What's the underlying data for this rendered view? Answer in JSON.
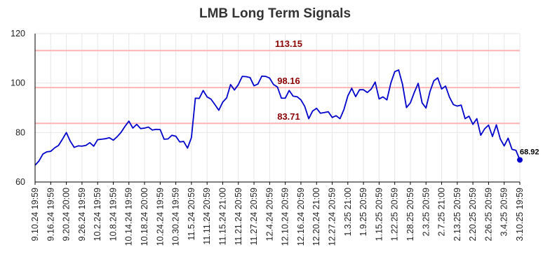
{
  "chart_data": {
    "type": "line",
    "title": "LMB Long Term Signals",
    "xlabel": "",
    "ylabel": "",
    "ylim": [
      60,
      120
    ],
    "y_ticks": [
      60,
      80,
      100,
      120
    ],
    "grid": true,
    "colors": {
      "line": "#0000cc",
      "level": "#ffb3b3",
      "level_text": "#8b0000",
      "grid": "#e6e6e6",
      "last_point": "#0000cc"
    },
    "x_tick_labels": [
      "9.10.24 19:59",
      "9.16.24 19:59",
      "9.20.24 20:00",
      "9.26.24 19:59",
      "10.2.24 19:59",
      "10.8.24 19:59",
      "10.14.24 19:59",
      "10.18.24 20:00",
      "10.24.24 19:59",
      "10.30.24 19:59",
      "11.5.24 20:59",
      "11.11.24 20:59",
      "11.15.24 21:00",
      "11.21.24 20:59",
      "11.27.24 20:59",
      "12.4.24 20:59",
      "12.10.24 20:59",
      "12.16.24 20:59",
      "12.20.24 21:00",
      "12.27.24 20:59",
      "1.3.25 21:00",
      "1.9.25 20:59",
      "1.15.25 20:59",
      "1.22.25 20:59",
      "1.28.25 20:59",
      "2.3.25 20:59",
      "2.7.25 21:00",
      "2.13.25 20:59",
      "2.20.25 20:59",
      "2.26.25 20:59",
      "3.4.25 20:59",
      "3.10.25 19:59"
    ],
    "levels": [
      {
        "value": 113.15,
        "label": "113.15"
      },
      {
        "value": 98.16,
        "label": "98.16"
      },
      {
        "value": 83.71,
        "label": "83.71"
      }
    ],
    "last_value_label": "68.92",
    "series": [
      {
        "values": [
          66.8,
          68.5,
          71.3,
          72.2,
          72.4,
          73.8,
          74.8,
          77.3,
          80.0,
          76.5,
          74.0,
          74.6,
          74.5,
          74.8,
          75.9,
          74.5,
          77.1,
          77.3,
          77.5,
          77.9,
          76.9,
          78.3,
          80.1,
          82.5,
          84.6,
          81.8,
          83.3,
          81.6,
          81.8,
          82.2,
          81.0,
          81.3,
          81.2,
          77.3,
          77.4,
          78.9,
          78.5,
          76.2,
          76.4,
          73.7,
          78.0,
          93.9,
          93.8,
          97.0,
          94.4,
          93.5,
          91.3,
          89.0,
          92.3,
          94.0,
          99.4,
          97.2,
          99.4,
          102.7,
          102.6,
          102.2,
          98.9,
          99.6,
          102.8,
          102.7,
          102.0,
          99.4,
          98.4,
          93.9,
          93.9,
          97.0,
          94.7,
          94.5,
          93.2,
          90.5,
          85.6,
          88.7,
          89.8,
          87.8,
          88.1,
          88.4,
          86.1,
          86.8,
          85.6,
          89.3,
          94.8,
          97.9,
          94.5,
          97.3,
          97.3,
          96.2,
          97.6,
          100.4,
          93.6,
          94.4,
          93.2,
          100.0,
          104.6,
          105.3,
          99.4,
          90.1,
          92.0,
          96.2,
          99.9,
          92.0,
          89.9,
          96.5,
          100.9,
          102.1,
          97.6,
          98.8,
          94.3,
          91.3,
          90.7,
          91.1,
          85.6,
          86.6,
          83.3,
          85.6,
          78.9,
          81.5,
          83.0,
          78.4,
          83.1,
          77.4,
          74.6,
          77.7,
          73.2,
          72.8,
          68.92
        ]
      }
    ]
  }
}
